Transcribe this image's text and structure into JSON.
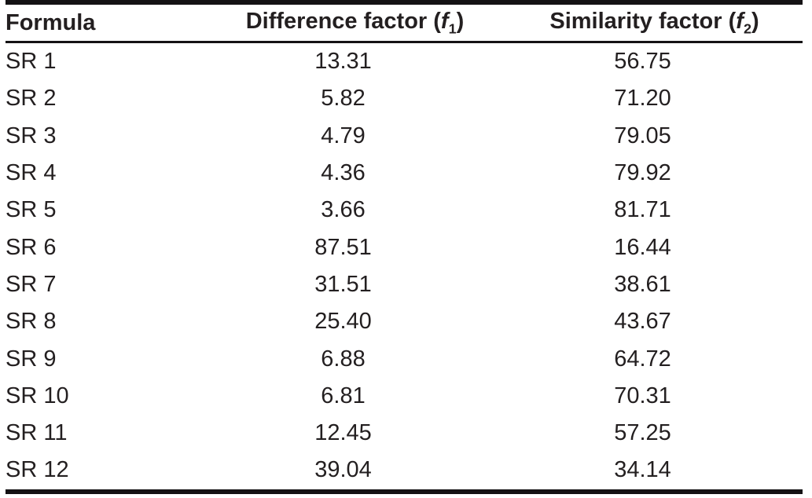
{
  "table": {
    "columns": [
      {
        "label": "Formula"
      },
      {
        "prefix": "Difference factor (",
        "symbol": "f",
        "subscript": "1",
        "suffix": ")"
      },
      {
        "prefix": "Similarity factor (",
        "symbol": "f",
        "subscript": "2",
        "suffix": ")"
      }
    ],
    "rows": [
      {
        "formula": "SR 1",
        "f1": "13.31",
        "f2": "56.75"
      },
      {
        "formula": "SR 2",
        "f1": "5.82",
        "f2": "71.20"
      },
      {
        "formula": "SR 3",
        "f1": "4.79",
        "f2": "79.05"
      },
      {
        "formula": "SR 4",
        "f1": "4.36",
        "f2": "79.92"
      },
      {
        "formula": "SR 5",
        "f1": "3.66",
        "f2": "81.71"
      },
      {
        "formula": "SR 6",
        "f1": "87.51",
        "f2": "16.44"
      },
      {
        "formula": "SR 7",
        "f1": "31.51",
        "f2": "38.61"
      },
      {
        "formula": "SR 8",
        "f1": "25.40",
        "f2": "43.67"
      },
      {
        "formula": "SR 9",
        "f1": "6.88",
        "f2": "64.72"
      },
      {
        "formula": "SR 10",
        "f1": "6.81",
        "f2": "70.31"
      },
      {
        "formula": "SR 11",
        "f1": "12.45",
        "f2": "57.25"
      },
      {
        "formula": "SR 12",
        "f1": "39.04",
        "f2": "34.14"
      }
    ]
  },
  "colors": {
    "text": "#231f20",
    "rule": "#141214",
    "background": "#ffffff"
  }
}
